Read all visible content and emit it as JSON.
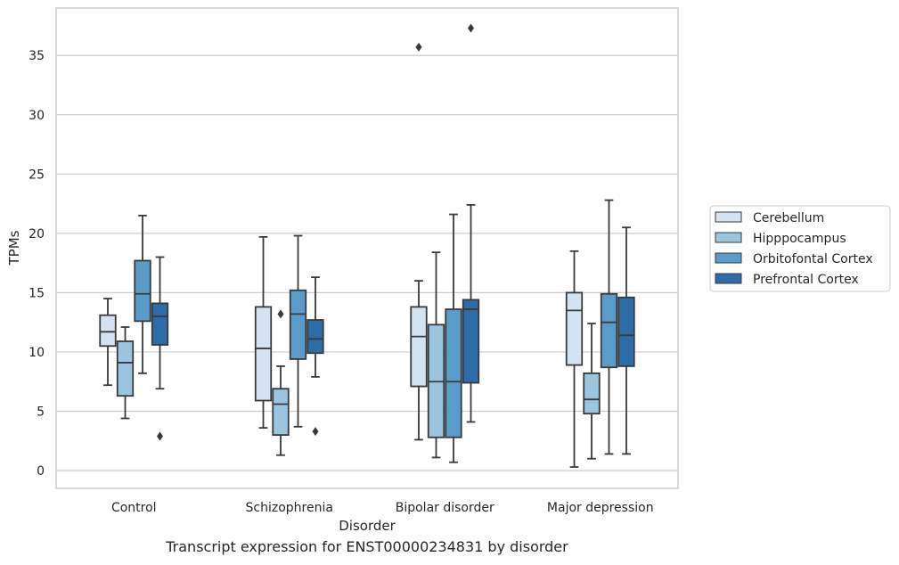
{
  "caption": "Transcript expression for ENST00000234831 by disorder",
  "chart_data": {
    "type": "boxplot",
    "xlabel": "Disorder",
    "ylabel": "TPMs",
    "ylim": [
      -1.5,
      39
    ],
    "yticks": [
      0,
      5,
      10,
      15,
      20,
      25,
      30,
      35
    ],
    "grid": "horizontal",
    "legend_position": "right",
    "categories": [
      "Control",
      "Schizophrenia",
      "Bipolar disorder",
      "Major depression"
    ],
    "series": [
      {
        "name": "Cerebellum",
        "color": "#d3e3f2",
        "boxes": [
          {
            "whislo": 7.2,
            "q1": 10.5,
            "med": 11.7,
            "q3": 13.1,
            "whishi": 14.5,
            "fliers": []
          },
          {
            "whislo": 3.6,
            "q1": 5.9,
            "med": 10.3,
            "q3": 13.8,
            "whishi": 19.7,
            "fliers": []
          },
          {
            "whislo": 2.6,
            "q1": 7.1,
            "med": 11.3,
            "q3": 13.8,
            "whishi": 16.0,
            "fliers": [
              35.7
            ]
          },
          {
            "whislo": 0.3,
            "q1": 8.9,
            "med": 13.5,
            "q3": 15.0,
            "whishi": 18.5,
            "fliers": []
          }
        ]
      },
      {
        "name": "Hipppocampus",
        "color": "#9bc5df",
        "boxes": [
          {
            "whislo": 4.4,
            "q1": 6.3,
            "med": 9.1,
            "q3": 10.9,
            "whishi": 12.1,
            "fliers": []
          },
          {
            "whislo": 1.3,
            "q1": 3.0,
            "med": 5.6,
            "q3": 6.9,
            "whishi": 8.8,
            "fliers": [
              13.2
            ]
          },
          {
            "whislo": 1.1,
            "q1": 2.8,
            "med": 7.5,
            "q3": 12.3,
            "whishi": 18.4,
            "fliers": []
          },
          {
            "whislo": 1.0,
            "q1": 4.8,
            "med": 6.0,
            "q3": 8.2,
            "whishi": 12.4,
            "fliers": []
          }
        ]
      },
      {
        "name": "Orbitofontal Cortex",
        "color": "#5a9cc9",
        "boxes": [
          {
            "whislo": 8.2,
            "q1": 12.6,
            "med": 14.9,
            "q3": 17.7,
            "whishi": 21.5,
            "fliers": []
          },
          {
            "whislo": 3.7,
            "q1": 9.4,
            "med": 13.2,
            "q3": 15.2,
            "whishi": 19.8,
            "fliers": []
          },
          {
            "whislo": 0.7,
            "q1": 2.8,
            "med": 7.5,
            "q3": 13.6,
            "whishi": 21.6,
            "fliers": []
          },
          {
            "whislo": 1.4,
            "q1": 8.7,
            "med": 12.5,
            "q3": 14.9,
            "whishi": 22.8,
            "fliers": []
          }
        ]
      },
      {
        "name": "Prefrontal Cortex",
        "color": "#2d6ca7",
        "boxes": [
          {
            "whislo": 6.9,
            "q1": 10.6,
            "med": 13.0,
            "q3": 14.1,
            "whishi": 18.0,
            "fliers": [
              2.9
            ]
          },
          {
            "whislo": 7.9,
            "q1": 9.9,
            "med": 11.1,
            "q3": 12.7,
            "whishi": 16.3,
            "fliers": [
              3.3
            ]
          },
          {
            "whislo": 4.1,
            "q1": 7.4,
            "med": 13.6,
            "q3": 14.4,
            "whishi": 22.4,
            "fliers": [
              37.3
            ]
          },
          {
            "whislo": 1.4,
            "q1": 8.8,
            "med": 11.4,
            "q3": 14.6,
            "whishi": 20.5,
            "fliers": []
          }
        ]
      }
    ]
  }
}
